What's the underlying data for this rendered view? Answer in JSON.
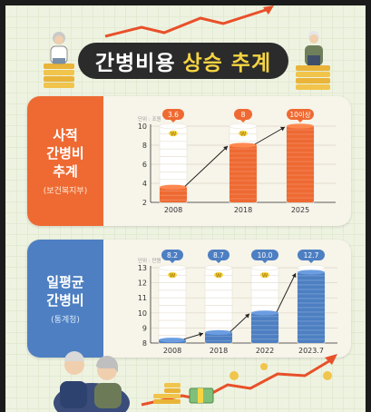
{
  "title": {
    "part1": "간병비용",
    "part2": "상승 추계"
  },
  "colors": {
    "orange": "#ee6a32",
    "blue": "#4d7fc2",
    "dark": "#2b2b2b",
    "yellow": "#f6d442",
    "bg": "#eef3e1"
  },
  "chart_data": [
    {
      "type": "bar",
      "side_title": [
        "사적",
        "간병비",
        "추계"
      ],
      "source": "(보건복지부)",
      "unit_label": "단위 : 조원",
      "categories": [
        "2008",
        "2018",
        "2025"
      ],
      "values": [
        3.6,
        8,
        10
      ],
      "value_labels": [
        "3.6",
        "8",
        "10이상"
      ],
      "yticks": [
        2,
        4,
        6,
        8,
        10
      ],
      "ylim": [
        2,
        10
      ],
      "color": "#ee6a32"
    },
    {
      "type": "bar",
      "side_title": [
        "일평균",
        "간병비"
      ],
      "source": "(통계청)",
      "unit_label": "단위 : 만원",
      "categories": [
        "2008",
        "2018",
        "2022",
        "2023.7"
      ],
      "values": [
        8.2,
        8.7,
        10.0,
        12.7
      ],
      "value_labels": [
        "8.2",
        "8.7",
        "10.0",
        "12.7"
      ],
      "yticks": [
        8,
        9,
        10,
        11,
        12,
        13
      ],
      "ylim": [
        8,
        13
      ],
      "color": "#4d7fc2"
    }
  ]
}
